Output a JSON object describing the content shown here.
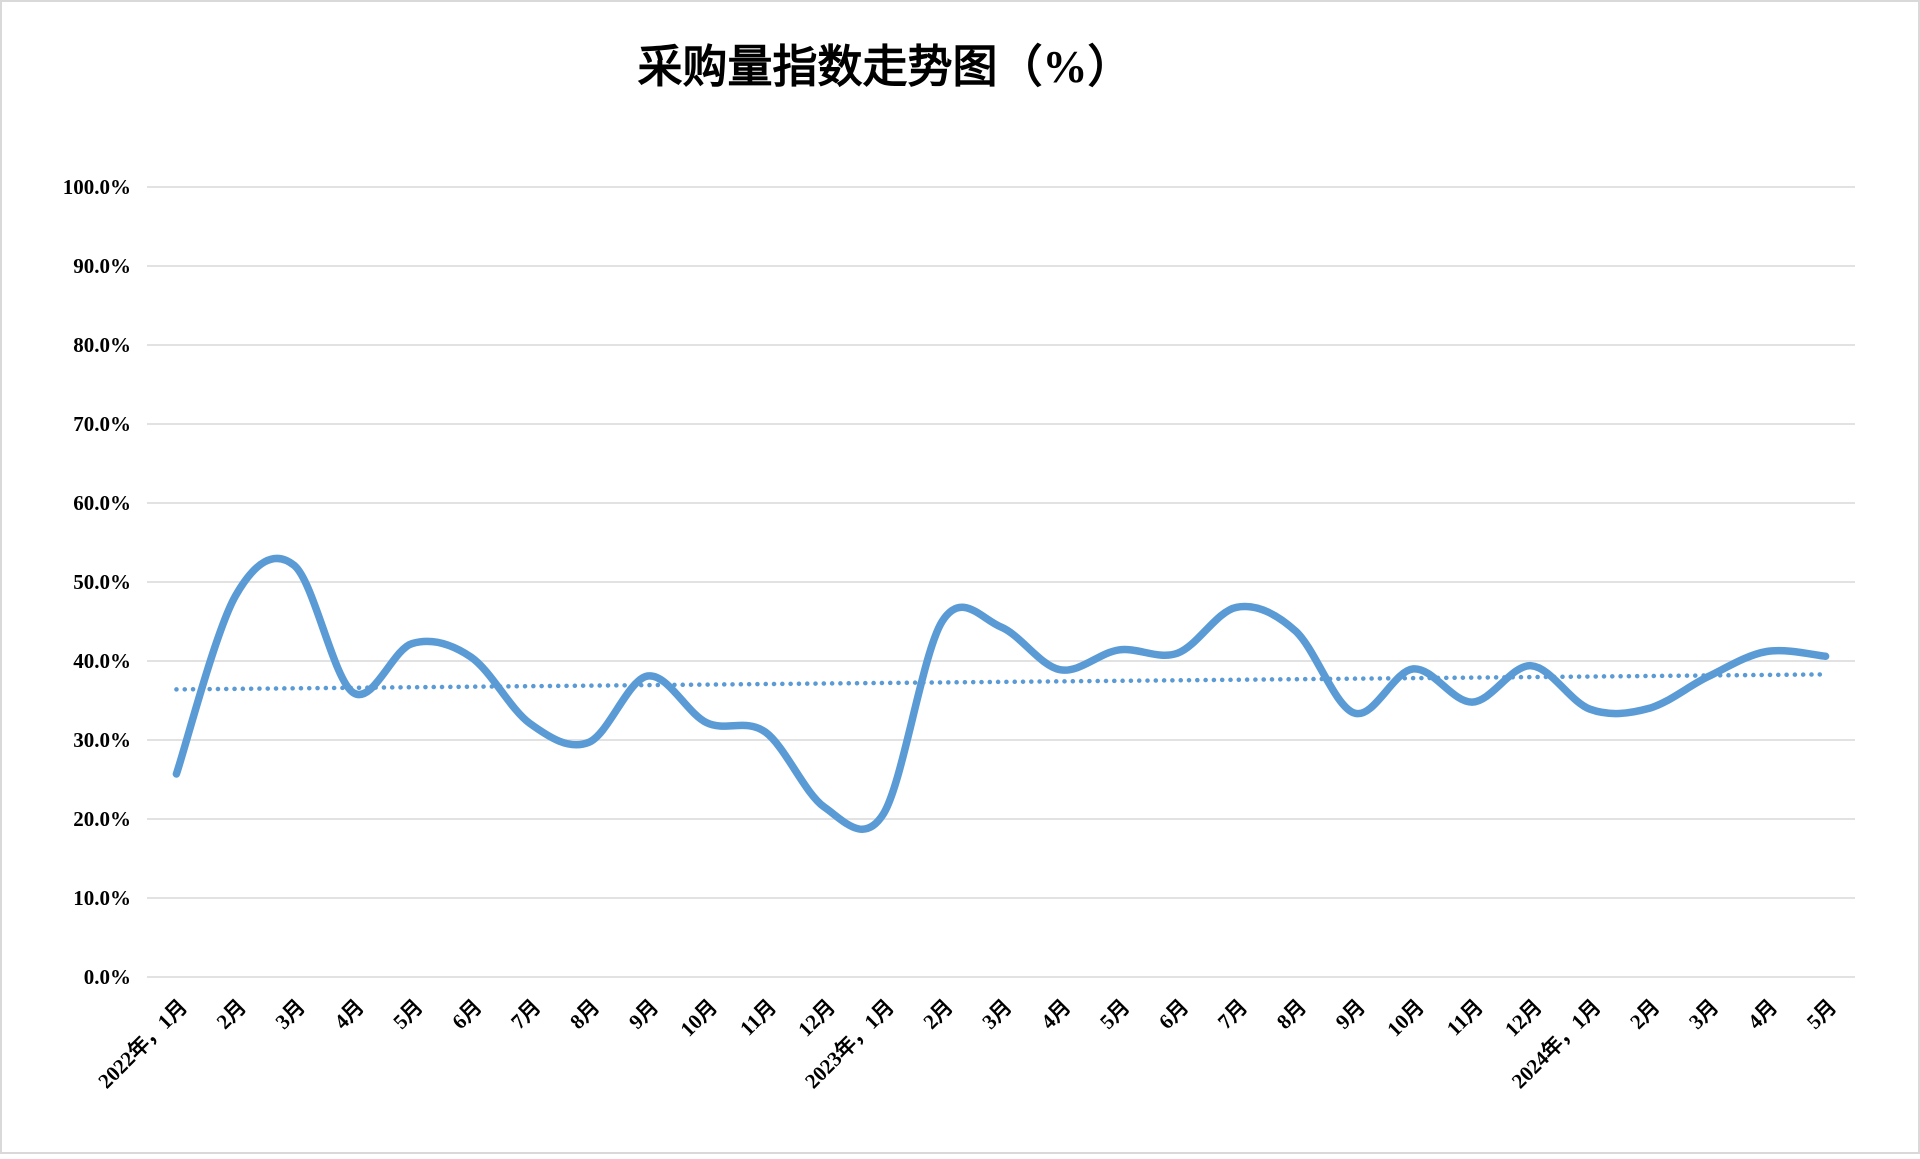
{
  "chart_data": {
    "type": "line",
    "title": "采购量指数走势图（%）",
    "xlabel": "",
    "ylabel": "",
    "ylim": [
      0,
      100
    ],
    "ytick_step": 10,
    "ytick_labels": [
      "0.0%",
      "10.0%",
      "20.0%",
      "30.0%",
      "40.0%",
      "50.0%",
      "60.0%",
      "70.0%",
      "80.0%",
      "90.0%",
      "100.0%"
    ],
    "grid": "horizontal",
    "legend_position": "none",
    "smooth": true,
    "categories": [
      "2022年，1月",
      "2月",
      "3月",
      "4月",
      "5月",
      "6月",
      "7月",
      "8月",
      "9月",
      "10月",
      "11月",
      "12月",
      "2023年，1月",
      "2月",
      "3月",
      "4月",
      "5月",
      "6月",
      "7月",
      "8月",
      "9月",
      "10月",
      "11月",
      "12月",
      "2024年，1月",
      "2月",
      "3月",
      "4月",
      "5月"
    ],
    "series": [
      {
        "name": "采购量指数",
        "values": [
          25.7,
          48.2,
          52.1,
          36.0,
          42.2,
          40.5,
          32.1,
          29.7,
          38.1,
          32.2,
          31.0,
          21.5,
          20.6,
          45.0,
          44.3,
          38.9,
          41.4,
          41.0,
          46.8,
          43.8,
          33.4,
          39.0,
          34.8,
          39.4,
          33.9,
          34.0,
          38.0,
          41.2,
          40.6
        ]
      }
    ],
    "trendline": {
      "type": "linear",
      "style": "dotted",
      "start_value": 36.4,
      "end_value": 38.3
    },
    "colors": {
      "line": "#5B9BD5",
      "trendline": "#5B9BD5",
      "gridline": "#D9D9D9",
      "border": "#D9D9D9",
      "text": "#000000",
      "background": "#FFFFFF"
    }
  }
}
